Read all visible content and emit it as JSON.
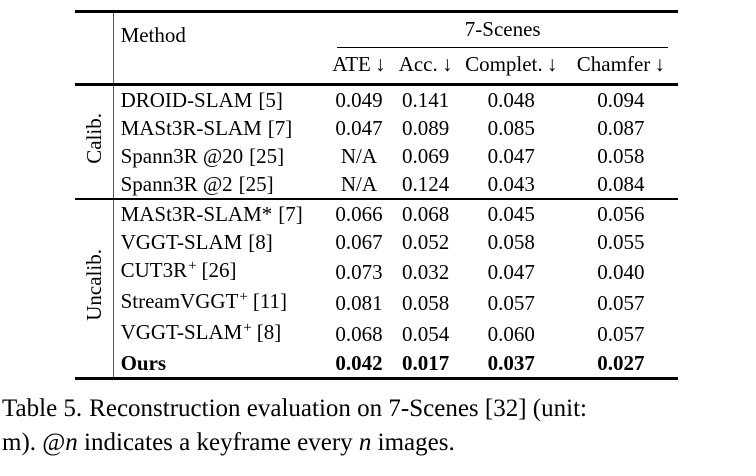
{
  "table": {
    "col_header": "Method",
    "dataset_header": "7-Scenes",
    "metrics": {
      "ate": "ATE ↓",
      "acc": "Acc. ↓",
      "complet": "Complet. ↓",
      "chamfer": "Chamfer ↓"
    },
    "groups": [
      {
        "label": "Calib.",
        "rows": [
          {
            "method": "DROID-SLAM",
            "sup": "",
            "ref": "[5]",
            "ate": "0.049",
            "acc": "0.141",
            "complet": "0.048",
            "chamfer": "0.094"
          },
          {
            "method": "MASt3R-SLAM",
            "sup": "",
            "ref": "[7]",
            "ate": "0.047",
            "acc": "0.089",
            "complet": "0.085",
            "chamfer": "0.087"
          },
          {
            "method": "Spann3R @20",
            "sup": "",
            "ref": "[25]",
            "ate": "N/A",
            "acc": "0.069",
            "complet": "0.047",
            "chamfer": "0.058"
          },
          {
            "method": "Spann3R @2",
            "sup": "",
            "ref": "[25]",
            "ate": "N/A",
            "acc": "0.124",
            "complet": "0.043",
            "chamfer": "0.084"
          }
        ]
      },
      {
        "label": "Uncalib.",
        "rows": [
          {
            "method": "MASt3R-SLAM*",
            "sup": "",
            "ref": "[7]",
            "ate": "0.066",
            "acc": "0.068",
            "complet": "0.045",
            "chamfer": "0.056"
          },
          {
            "method": "VGGT-SLAM",
            "sup": "",
            "ref": "[8]",
            "ate": "0.067",
            "acc": "0.052",
            "complet": "0.058",
            "chamfer": "0.055"
          },
          {
            "method": "CUT3R",
            "sup": "+",
            "ref": "[26]",
            "ate": "0.073",
            "acc": "0.032",
            "complet": "0.047",
            "chamfer": "0.040"
          },
          {
            "method": "StreamVGGT",
            "sup": "+",
            "ref": "[11]",
            "ate": "0.081",
            "acc": "0.058",
            "complet": "0.057",
            "chamfer": "0.057"
          },
          {
            "method": "VGGT-SLAM",
            "sup": "+",
            "ref": "[8]",
            "ate": "0.068",
            "acc": "0.054",
            "complet": "0.060",
            "chamfer": "0.057"
          },
          {
            "method": "Ours",
            "sup": "",
            "ref": "",
            "ate": "0.042",
            "acc": "0.017",
            "complet": "0.037",
            "chamfer": "0.027"
          }
        ]
      }
    ]
  },
  "caption": {
    "label": "Table 5.",
    "line1": "Reconstruction evaluation on 7-Scenes [32] (unit:",
    "line2_pre": "m). @",
    "italic1": "n",
    "line2_mid": " indicates a keyframe every ",
    "italic2": "n",
    "line2_post": " images."
  }
}
